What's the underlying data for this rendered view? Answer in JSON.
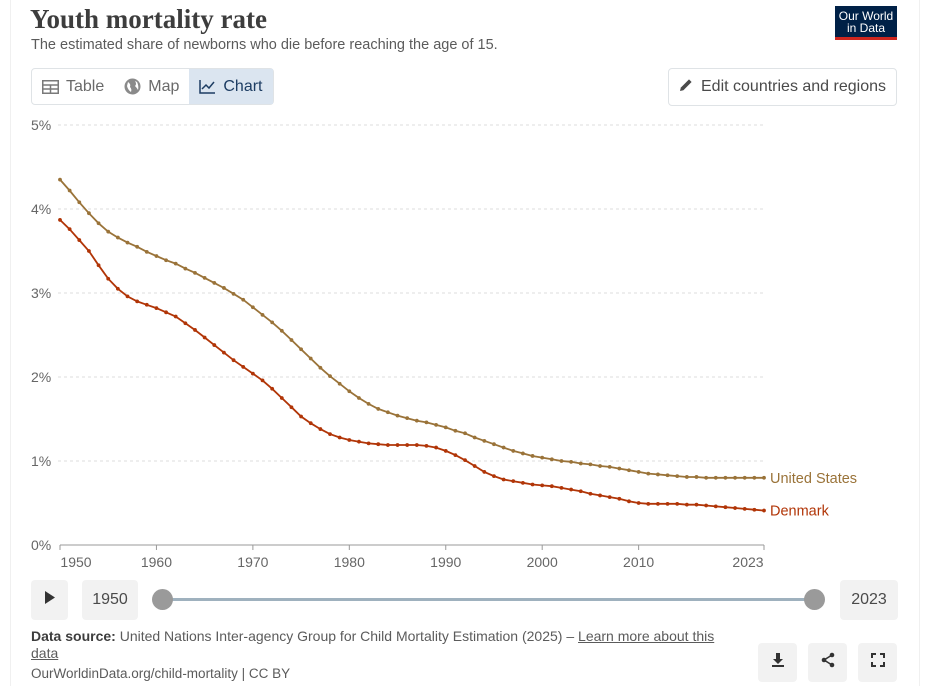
{
  "header": {
    "title": "Youth mortality rate",
    "subtitle": "The estimated share of newborns who die before reaching the age of 15.",
    "logo_line1": "Our World",
    "logo_line2": "in Data"
  },
  "tabs": [
    {
      "label": "Table",
      "icon": "table-icon",
      "active": false
    },
    {
      "label": "Map",
      "icon": "globe-icon",
      "active": false
    },
    {
      "label": "Chart",
      "icon": "line-chart-icon",
      "active": true
    }
  ],
  "edit_button": {
    "label": "Edit countries and regions",
    "icon": "pencil-icon"
  },
  "chart_data": {
    "type": "line",
    "ylim": [
      0,
      5
    ],
    "xlim": [
      1950,
      2023
    ],
    "y_ticks": [
      "0%",
      "1%",
      "2%",
      "3%",
      "4%",
      "5%"
    ],
    "x_ticks": [
      "1950",
      "1960",
      "1970",
      "1980",
      "1990",
      "2000",
      "2010",
      "2023"
    ],
    "grid": true,
    "colors": {
      "United States": "#9a7339",
      "Denmark": "#b13507"
    },
    "series": [
      {
        "name": "United States",
        "x": [
          1950,
          1951,
          1952,
          1953,
          1954,
          1955,
          1956,
          1957,
          1958,
          1959,
          1960,
          1961,
          1962,
          1963,
          1964,
          1965,
          1966,
          1967,
          1968,
          1969,
          1970,
          1971,
          1972,
          1973,
          1974,
          1975,
          1976,
          1977,
          1978,
          1979,
          1980,
          1981,
          1982,
          1983,
          1984,
          1985,
          1986,
          1987,
          1988,
          1989,
          1990,
          1991,
          1992,
          1993,
          1994,
          1995,
          1996,
          1997,
          1998,
          1999,
          2000,
          2001,
          2002,
          2003,
          2004,
          2005,
          2006,
          2007,
          2008,
          2009,
          2010,
          2011,
          2012,
          2013,
          2014,
          2015,
          2016,
          2017,
          2018,
          2019,
          2020,
          2021,
          2022,
          2023
        ],
        "values": [
          4.35,
          4.22,
          4.08,
          3.95,
          3.83,
          3.73,
          3.66,
          3.6,
          3.55,
          3.49,
          3.44,
          3.39,
          3.35,
          3.29,
          3.24,
          3.18,
          3.12,
          3.06,
          2.99,
          2.92,
          2.83,
          2.74,
          2.65,
          2.55,
          2.44,
          2.33,
          2.22,
          2.11,
          2.01,
          1.92,
          1.83,
          1.75,
          1.68,
          1.62,
          1.58,
          1.54,
          1.51,
          1.48,
          1.46,
          1.43,
          1.4,
          1.36,
          1.33,
          1.28,
          1.24,
          1.2,
          1.16,
          1.12,
          1.09,
          1.06,
          1.04,
          1.02,
          1.0,
          0.99,
          0.97,
          0.96,
          0.94,
          0.93,
          0.91,
          0.89,
          0.87,
          0.85,
          0.84,
          0.83,
          0.82,
          0.81,
          0.81,
          0.8,
          0.8,
          0.8,
          0.8,
          0.8,
          0.8,
          0.8
        ]
      },
      {
        "name": "Denmark",
        "x": [
          1950,
          1951,
          1952,
          1953,
          1954,
          1955,
          1956,
          1957,
          1958,
          1959,
          1960,
          1961,
          1962,
          1963,
          1964,
          1965,
          1966,
          1967,
          1968,
          1969,
          1970,
          1971,
          1972,
          1973,
          1974,
          1975,
          1976,
          1977,
          1978,
          1979,
          1980,
          1981,
          1982,
          1983,
          1984,
          1985,
          1986,
          1987,
          1988,
          1989,
          1990,
          1991,
          1992,
          1993,
          1994,
          1995,
          1996,
          1997,
          1998,
          1999,
          2000,
          2001,
          2002,
          2003,
          2004,
          2005,
          2006,
          2007,
          2008,
          2009,
          2010,
          2011,
          2012,
          2013,
          2014,
          2015,
          2016,
          2017,
          2018,
          2019,
          2020,
          2021,
          2022,
          2023
        ],
        "values": [
          3.87,
          3.76,
          3.63,
          3.5,
          3.33,
          3.17,
          3.05,
          2.96,
          2.9,
          2.86,
          2.82,
          2.77,
          2.72,
          2.64,
          2.56,
          2.47,
          2.38,
          2.29,
          2.2,
          2.12,
          2.04,
          1.96,
          1.86,
          1.75,
          1.64,
          1.53,
          1.45,
          1.38,
          1.32,
          1.28,
          1.25,
          1.23,
          1.21,
          1.2,
          1.19,
          1.19,
          1.19,
          1.19,
          1.18,
          1.16,
          1.12,
          1.07,
          1.01,
          0.94,
          0.87,
          0.82,
          0.78,
          0.76,
          0.74,
          0.72,
          0.71,
          0.7,
          0.68,
          0.66,
          0.64,
          0.61,
          0.59,
          0.57,
          0.55,
          0.52,
          0.5,
          0.49,
          0.49,
          0.49,
          0.49,
          0.48,
          0.48,
          0.47,
          0.46,
          0.45,
          0.44,
          0.43,
          0.42,
          0.41
        ]
      }
    ]
  },
  "timeline": {
    "start": "1950",
    "end": "2023",
    "play_icon": "play-icon"
  },
  "footer": {
    "source_label": "Data source:",
    "source_text": "United Nations Inter-agency Group for Child Mortality Estimation (2025) – ",
    "learn_more": "Learn more about this data",
    "url": "OurWorldinData.org/child-mortality | CC BY"
  },
  "actions": {
    "download_icon": "download-icon",
    "share_icon": "share-icon",
    "fullscreen_icon": "fullscreen-icon"
  }
}
